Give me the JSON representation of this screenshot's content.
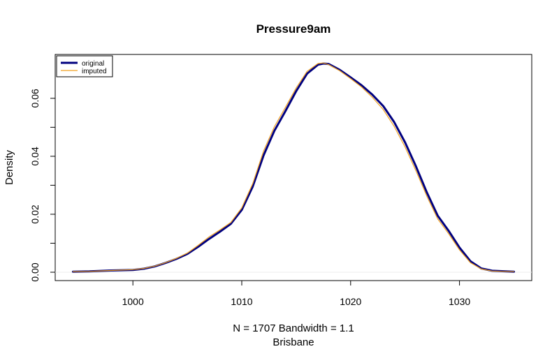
{
  "chart_data": {
    "type": "line",
    "title": "Pressure9am",
    "ylabel": "Density",
    "xlabel_line1": "N = 1707   Bandwidth = 1.1",
    "xlabel_line2": "Brisbane",
    "xlim": [
      994.5,
      1035
    ],
    "ylim": [
      0,
      0.072
    ],
    "x_ticks": [
      1000,
      1010,
      1020,
      1030
    ],
    "x_tick_labels": [
      "1000",
      "1010",
      "1020",
      "1030"
    ],
    "y_ticks": [
      0.0,
      0.02,
      0.04,
      0.06
    ],
    "y_tick_labels": [
      "0.00",
      "0.02",
      "0.04",
      "0.06"
    ],
    "y_minor_ticks": [
      0.01,
      0.03,
      0.05
    ],
    "grid": false,
    "legend_position": "top-left",
    "series": [
      {
        "name": "original",
        "color": "#00007f",
        "points": [
          [
            994.5,
            0.0002
          ],
          [
            996,
            0.0003
          ],
          [
            998,
            0.0006
          ],
          [
            1000,
            0.0008
          ],
          [
            1001,
            0.0012
          ],
          [
            1002,
            0.002
          ],
          [
            1003,
            0.0032
          ],
          [
            1004,
            0.0046
          ],
          [
            1005,
            0.0063
          ],
          [
            1006,
            0.0088
          ],
          [
            1007,
            0.0115
          ],
          [
            1008,
            0.014
          ],
          [
            1009,
            0.0167
          ],
          [
            1010,
            0.0215
          ],
          [
            1011,
            0.0295
          ],
          [
            1012,
            0.0403
          ],
          [
            1013,
            0.0488
          ],
          [
            1014,
            0.0555
          ],
          [
            1015,
            0.0625
          ],
          [
            1016,
            0.0685
          ],
          [
            1017,
            0.0716
          ],
          [
            1017.5,
            0.072
          ],
          [
            1018,
            0.0718
          ],
          [
            1019,
            0.0698
          ],
          [
            1020,
            0.0672
          ],
          [
            1021,
            0.0645
          ],
          [
            1022,
            0.0612
          ],
          [
            1023,
            0.0573
          ],
          [
            1024,
            0.0518
          ],
          [
            1025,
            0.0448
          ],
          [
            1026,
            0.0365
          ],
          [
            1027,
            0.0275
          ],
          [
            1028,
            0.0195
          ],
          [
            1029,
            0.0143
          ],
          [
            1030,
            0.0085
          ],
          [
            1031,
            0.0038
          ],
          [
            1032,
            0.0013
          ],
          [
            1033,
            0.0005
          ],
          [
            1035,
            0.0002
          ]
        ]
      },
      {
        "name": "imputed",
        "color": "#f0a020",
        "points": [
          [
            994.5,
            0.0002
          ],
          [
            996,
            0.0003
          ],
          [
            998,
            0.0006
          ],
          [
            1000,
            0.0009
          ],
          [
            1001,
            0.0013
          ],
          [
            1002,
            0.0021
          ],
          [
            1003,
            0.0033
          ],
          [
            1004,
            0.0048
          ],
          [
            1005,
            0.0066
          ],
          [
            1006,
            0.0093
          ],
          [
            1007,
            0.0122
          ],
          [
            1008,
            0.0146
          ],
          [
            1009,
            0.0172
          ],
          [
            1010,
            0.0222
          ],
          [
            1011,
            0.0305
          ],
          [
            1012,
            0.0418
          ],
          [
            1013,
            0.0502
          ],
          [
            1014,
            0.0568
          ],
          [
            1015,
            0.0636
          ],
          [
            1016,
            0.0693
          ],
          [
            1017,
            0.072
          ],
          [
            1017.5,
            0.0722
          ],
          [
            1018,
            0.0716
          ],
          [
            1019,
            0.0695
          ],
          [
            1020,
            0.0668
          ],
          [
            1021,
            0.0639
          ],
          [
            1022,
            0.0603
          ],
          [
            1023,
            0.0561
          ],
          [
            1024,
            0.0503
          ],
          [
            1025,
            0.0432
          ],
          [
            1026,
            0.035
          ],
          [
            1027,
            0.0262
          ],
          [
            1028,
            0.0184
          ],
          [
            1029,
            0.0133
          ],
          [
            1030,
            0.0077
          ],
          [
            1031,
            0.0033
          ],
          [
            1032,
            0.0011
          ],
          [
            1033,
            0.0004
          ],
          [
            1035,
            0.0002
          ]
        ]
      }
    ]
  }
}
